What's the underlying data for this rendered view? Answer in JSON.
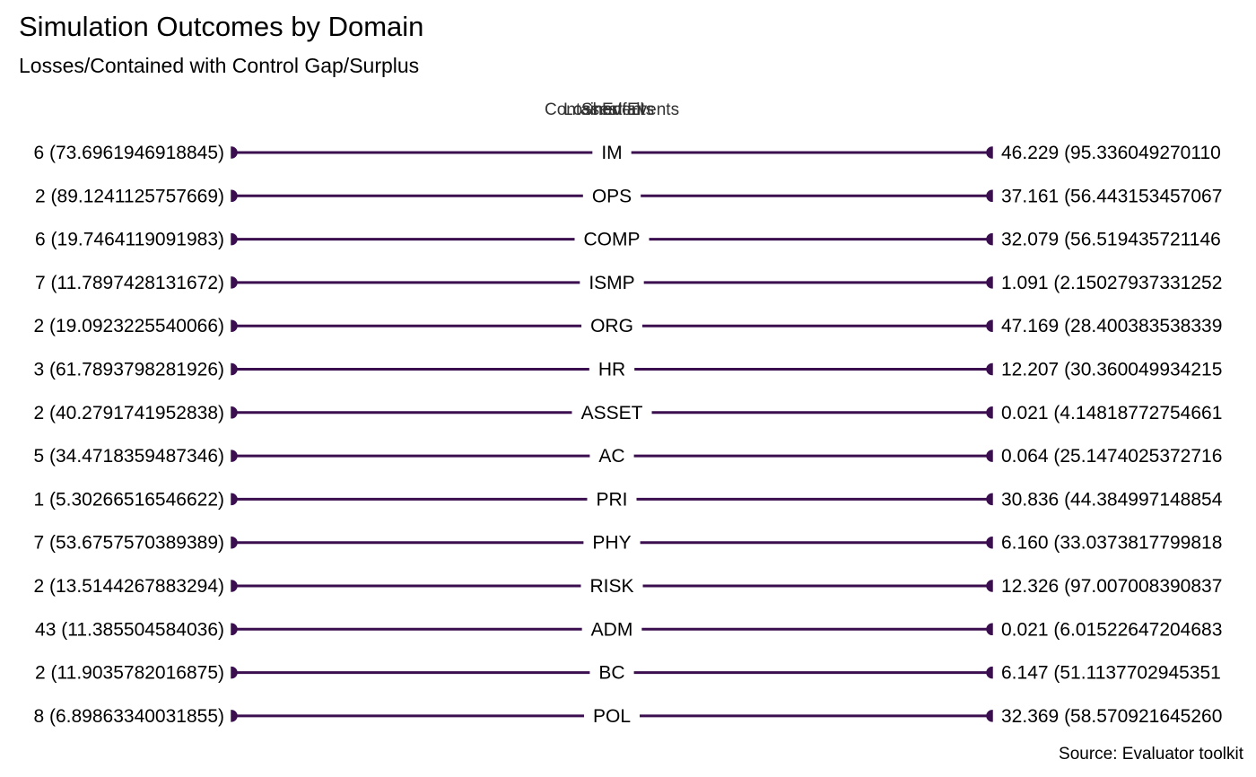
{
  "chart_data": {
    "type": "bar",
    "title": "Simulation Outcomes by Domain",
    "subtitle": "Losses/Contained with Control Gap/Surplus",
    "legend": [
      "Contained",
      "Losses",
      "Shortfall",
      "Events",
      "Events"
    ],
    "caption": "Source: Evaluator toolkit",
    "colors": {
      "line": "#3b0f4f",
      "text": "#000000"
    },
    "rows": [
      {
        "domain": "IM",
        "left_label": "6 (73.6961946918845)",
        "right_label": "46.229 (95.336049270110"
      },
      {
        "domain": "OPS",
        "left_label": "2 (89.1241125757669)",
        "right_label": "37.161 (56.443153457067"
      },
      {
        "domain": "COMP",
        "left_label": "6 (19.7464119091983)",
        "right_label": "32.079 (56.519435721146"
      },
      {
        "domain": "ISMP",
        "left_label": "7 (11.7897428131672)",
        "right_label": "1.091 (2.15027937331252"
      },
      {
        "domain": "ORG",
        "left_label": "2 (19.0923225540066)",
        "right_label": "47.169 (28.400383538339"
      },
      {
        "domain": "HR",
        "left_label": "3 (61.7893798281926)",
        "right_label": "12.207 (30.360049934215"
      },
      {
        "domain": "ASSET",
        "left_label": "2 (40.2791741952838)",
        "right_label": "0.021 (4.14818772754661"
      },
      {
        "domain": "AC",
        "left_label": "5 (34.4718359487346)",
        "right_label": "0.064 (25.1474025372716"
      },
      {
        "domain": "PRI",
        "left_label": "1 (5.30266516546622)",
        "right_label": "30.836 (44.384997148854"
      },
      {
        "domain": "PHY",
        "left_label": "7 (53.6757570389389)",
        "right_label": "6.160 (33.0373817799818"
      },
      {
        "domain": "RISK",
        "left_label": "2 (13.5144267883294)",
        "right_label": "12.326 (97.007008390837"
      },
      {
        "domain": "ADM",
        "left_label": "43 (11.385504584036)",
        "right_label": "0.021 (6.01522647204683"
      },
      {
        "domain": "BC",
        "left_label": "2 (11.9035782016875)",
        "right_label": "6.147 (51.1137702945351"
      },
      {
        "domain": "POL",
        "left_label": "8 (6.89863340031855)",
        "right_label": "32.369 (58.570921645260"
      }
    ]
  }
}
